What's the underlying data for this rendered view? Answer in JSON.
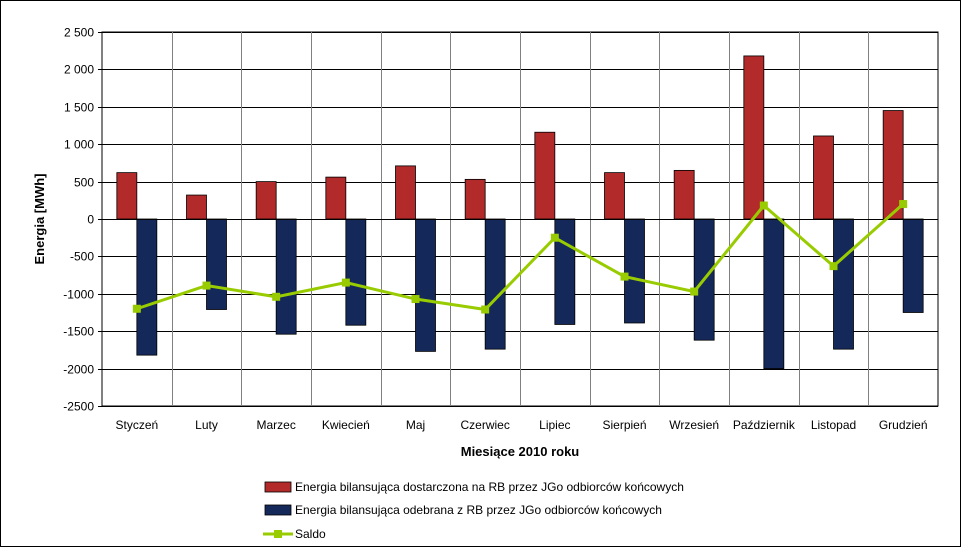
{
  "chart_data": {
    "type": "bar",
    "title": "",
    "xlabel": "Miesiące 2010  roku",
    "ylabel": "Energia [MWh]",
    "ylim": [
      -2500,
      2500
    ],
    "yticks": [
      2500,
      2000,
      1500,
      1000,
      500,
      0,
      -500,
      -1000,
      -1500,
      -2000,
      -2500
    ],
    "ytick_labels": [
      "2 500",
      "2 000",
      "1 500",
      "1 000",
      "500",
      "0",
      "-500",
      "-1000",
      "-1500",
      "-2000",
      "-2500"
    ],
    "grid": true,
    "legend_position": "bottom",
    "categories": [
      "Styczeń",
      "Luty",
      "Marzec",
      "Kwiecień",
      "Maj",
      "Czerwiec",
      "Lipiec",
      "Sierpień",
      "Wrzesień",
      "Październik",
      "Listopad",
      "Grudzień"
    ],
    "series": [
      {
        "name": "Energia bilansująca dostarczona na RB przez JGo odbiorców końcowych",
        "type": "bar",
        "color": "#b22a2a",
        "values": [
          620,
          320,
          500,
          560,
          710,
          530,
          1160,
          620,
          650,
          2180,
          1110,
          1450
        ]
      },
      {
        "name": "Energia bilansująca odebrana z RB przez JGo odbiorców końcowych",
        "type": "bar",
        "color": "#14295a",
        "values": [
          -1820,
          -1210,
          -1540,
          -1420,
          -1770,
          -1740,
          -1410,
          -1390,
          -1620,
          -2000,
          -1740,
          -1250
        ]
      },
      {
        "name": "Saldo",
        "type": "line",
        "color": "#99cc00",
        "values": [
          -1200,
          -890,
          -1040,
          -850,
          -1070,
          -1210,
          -250,
          -770,
          -970,
          180,
          -630,
          200
        ]
      }
    ]
  }
}
